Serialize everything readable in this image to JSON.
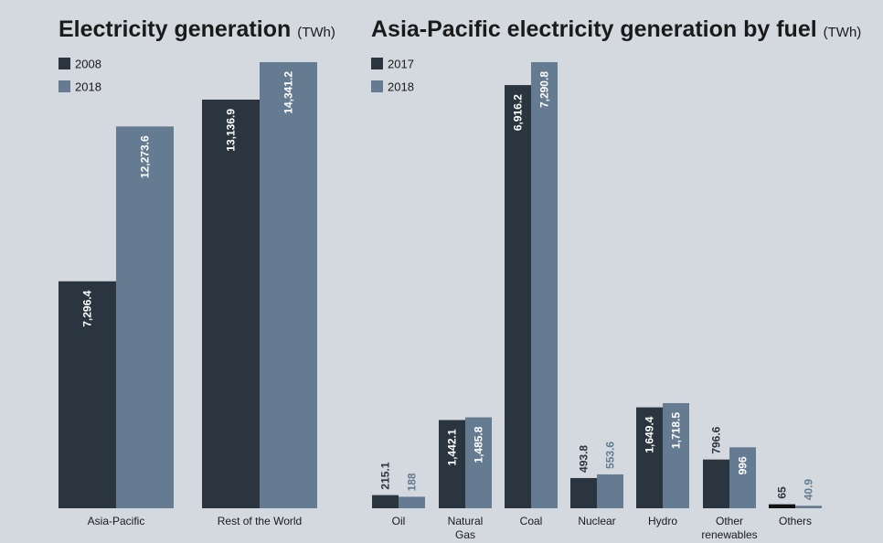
{
  "colors": {
    "background": "#d3d9de",
    "dark": "#2b353f",
    "slate": "#647b92",
    "black": "#111111",
    "text": "#1a1a1a"
  },
  "chart_data": [
    {
      "type": "bar",
      "title": "Electricity generation",
      "unit": "(TWh)",
      "categories": [
        "Asia-Pacific",
        "Rest of the World"
      ],
      "series": [
        {
          "name": "2008",
          "values": [
            7296.4,
            13136.9
          ],
          "labels": [
            "7,296.4",
            "13,136.9"
          ],
          "color": "#2b353f"
        },
        {
          "name": "2018",
          "values": [
            12273.6,
            14341.2
          ],
          "labels": [
            "12,273.6",
            "14,341.2"
          ],
          "color": "#647b92"
        }
      ],
      "ylim": [
        0,
        14341.2
      ],
      "grid": false,
      "legend": "top-left",
      "xlabel": "",
      "ylabel": ""
    },
    {
      "type": "bar",
      "title": "Asia-Pacific electricity generation by fuel",
      "unit": "(TWh)",
      "categories": [
        "Oil",
        "Natural Gas",
        "Coal",
        "Nuclear",
        "Hydro",
        "Other renewables",
        "Others"
      ],
      "category_lines": [
        [
          "Oil"
        ],
        [
          "Natural",
          "Gas"
        ],
        [
          "Coal"
        ],
        [
          "Nuclear"
        ],
        [
          "Hydro"
        ],
        [
          "Other",
          "renewables"
        ],
        [
          "Others"
        ]
      ],
      "series": [
        {
          "name": "2017",
          "values": [
            215.1,
            1442.1,
            6916.2,
            493.8,
            1649.4,
            796.6,
            65
          ],
          "labels": [
            "215.1",
            "1,442.1",
            "6,916.2",
            "493.8",
            "1,649.4",
            "796.6",
            "65"
          ],
          "color": "#2b353f"
        },
        {
          "name": "2018",
          "values": [
            188,
            1485.8,
            7290.8,
            553.6,
            1718.5,
            996,
            40.9
          ],
          "labels": [
            "188",
            "1,485.8",
            "7,290.8",
            "553.6",
            "1,718.5",
            "996",
            "40.9"
          ],
          "color": "#647b92"
        }
      ],
      "ylim": [
        0,
        7290.8
      ],
      "grid": false,
      "legend": "top-left",
      "xlabel": "",
      "ylabel": ""
    }
  ]
}
